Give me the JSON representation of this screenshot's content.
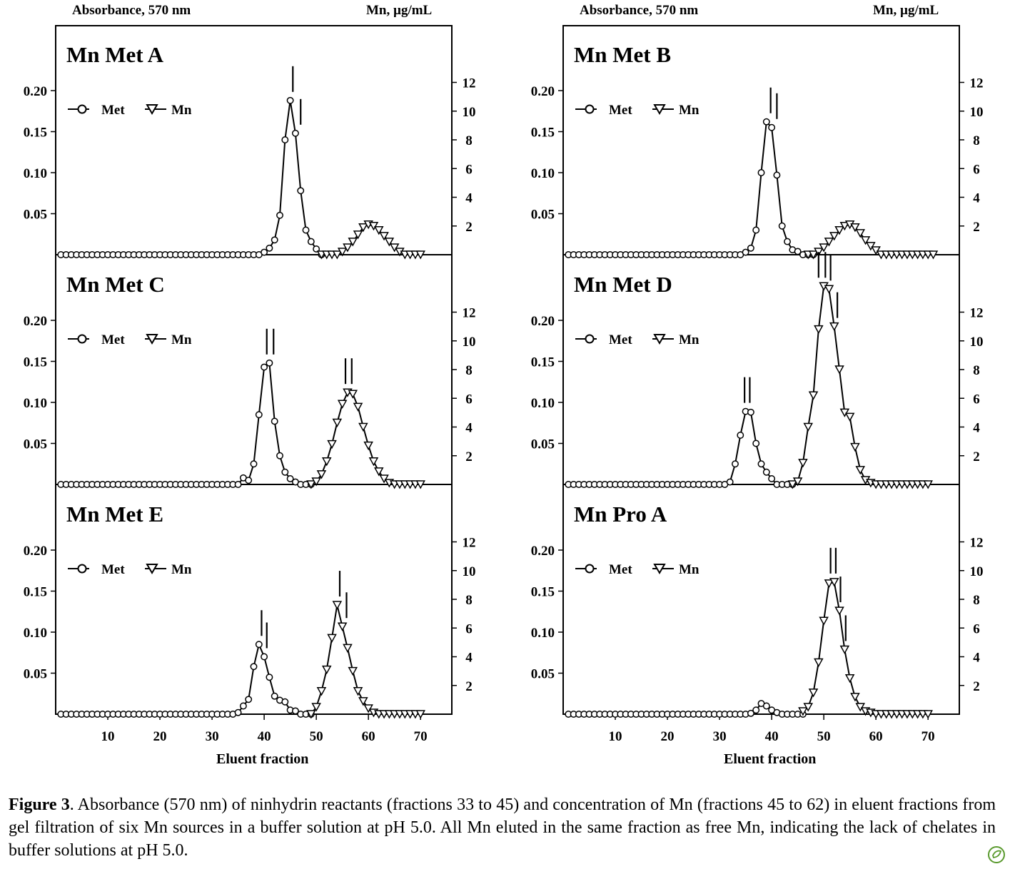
{
  "headers": {
    "left_y_label": "Absorbance, 570 nm",
    "right_y_label": "Mn, µg/mL",
    "x_label": "Eluent fraction"
  },
  "caption": {
    "figure_label": "Figure 3",
    "text": ". Absorbance (570 nm) of ninhydrin reactants (fractions 33 to 45) and concentration of Mn (fractions 45 to 62) in eluent fractions from gel filtration of six Mn sources in a buffer solution at pH 5.0. All Mn eluted in the same fraction as free Mn, indicating the lack of chelates in buffer solutions at pH 5.0."
  },
  "legend": {
    "met": "Met",
    "mn": "Mn"
  },
  "axes": {
    "x_ticks": [
      10,
      20,
      30,
      40,
      50,
      60,
      70
    ],
    "x_range": [
      0,
      76
    ],
    "left_ticks": [
      "0.05",
      "0.10",
      "0.15",
      "0.20"
    ],
    "left_range": [
      0,
      0.28
    ],
    "right_ticks": [
      "2",
      "4",
      "6",
      "8",
      "10",
      "12"
    ],
    "right_range": [
      0,
      16
    ]
  },
  "chart_data": [
    {
      "type": "line",
      "title": "Mn Met A",
      "series": [
        {
          "name": "Met",
          "axis": "left",
          "x": [
            1,
            2,
            3,
            4,
            5,
            6,
            7,
            8,
            9,
            10,
            11,
            12,
            13,
            14,
            15,
            16,
            17,
            18,
            19,
            20,
            21,
            22,
            23,
            24,
            25,
            26,
            27,
            28,
            29,
            30,
            31,
            32,
            33,
            34,
            35,
            36,
            37,
            38,
            39,
            40,
            41,
            42,
            43,
            44,
            45,
            46,
            47,
            48,
            49,
            50,
            51
          ],
          "values": [
            0,
            0,
            0,
            0,
            0,
            0,
            0,
            0,
            0,
            0,
            0,
            0,
            0,
            0,
            0,
            0,
            0,
            0,
            0,
            0,
            0,
            0,
            0,
            0,
            0,
            0,
            0,
            0,
            0,
            0,
            0,
            0,
            0,
            0,
            0,
            0,
            0,
            0,
            0,
            0.003,
            0.008,
            0.018,
            0.048,
            0.14,
            0.188,
            0.148,
            0.078,
            0.03,
            0.016,
            0.007,
            0
          ]
        },
        {
          "name": "Mn",
          "axis": "right",
          "x": [
            51,
            52,
            53,
            54,
            55,
            56,
            57,
            58,
            59,
            60,
            61,
            62,
            63,
            64,
            65,
            66,
            67,
            68,
            69,
            70
          ],
          "values": [
            0,
            0,
            0,
            0,
            0.2,
            0.5,
            0.9,
            1.4,
            1.9,
            2.1,
            2.0,
            1.7,
            1.3,
            0.9,
            0.5,
            0.2,
            0,
            0,
            0,
            0
          ]
        }
      ],
      "markers": [
        45.5,
        47
      ]
    },
    {
      "type": "line",
      "title": "Mn Met B",
      "series": [
        {
          "name": "Met",
          "axis": "left",
          "x": [
            1,
            2,
            3,
            4,
            5,
            6,
            7,
            8,
            9,
            10,
            11,
            12,
            13,
            14,
            15,
            16,
            17,
            18,
            19,
            20,
            21,
            22,
            23,
            24,
            25,
            26,
            27,
            28,
            29,
            30,
            31,
            32,
            33,
            34,
            35,
            36,
            37,
            38,
            39,
            40,
            41,
            42,
            43,
            44,
            45,
            46,
            47,
            48
          ],
          "values": [
            0,
            0,
            0,
            0,
            0,
            0,
            0,
            0,
            0,
            0,
            0,
            0,
            0,
            0,
            0,
            0,
            0,
            0,
            0,
            0,
            0,
            0,
            0,
            0,
            0,
            0,
            0,
            0,
            0,
            0,
            0,
            0,
            0,
            0,
            0.003,
            0.008,
            0.03,
            0.1,
            0.162,
            0.155,
            0.097,
            0.035,
            0.016,
            0.006,
            0.004,
            0,
            0,
            0
          ]
        },
        {
          "name": "Mn",
          "axis": "right",
          "x": [
            47,
            48,
            49,
            50,
            51,
            52,
            53,
            54,
            55,
            56,
            57,
            58,
            59,
            60,
            61,
            62,
            63,
            64,
            65,
            66,
            67,
            68,
            69,
            70,
            71
          ],
          "values": [
            0,
            0,
            0.2,
            0.5,
            0.9,
            1.3,
            1.7,
            2.0,
            2.1,
            1.9,
            1.5,
            1.0,
            0.6,
            0.3,
            0,
            0,
            0,
            0,
            0,
            0,
            0,
            0,
            0,
            0,
            0
          ]
        }
      ],
      "markers": [
        39.8,
        41
      ]
    },
    {
      "type": "line",
      "title": "Mn Met C",
      "series": [
        {
          "name": "Met",
          "axis": "left",
          "x": [
            1,
            2,
            3,
            4,
            5,
            6,
            7,
            8,
            9,
            10,
            11,
            12,
            13,
            14,
            15,
            16,
            17,
            18,
            19,
            20,
            21,
            22,
            23,
            24,
            25,
            26,
            27,
            28,
            29,
            30,
            31,
            32,
            33,
            34,
            35,
            36,
            37,
            38,
            39,
            40,
            41,
            42,
            43,
            44,
            45,
            46,
            47,
            48,
            49
          ],
          "values": [
            0,
            0,
            0,
            0,
            0,
            0,
            0,
            0,
            0,
            0,
            0,
            0,
            0,
            0,
            0,
            0,
            0,
            0,
            0,
            0,
            0,
            0,
            0,
            0,
            0,
            0,
            0,
            0,
            0,
            0,
            0,
            0,
            0,
            0,
            0,
            0.008,
            0.005,
            0.025,
            0.085,
            0.143,
            0.148,
            0.077,
            0.035,
            0.015,
            0.007,
            0.003,
            0,
            0,
            0
          ]
        },
        {
          "name": "Mn",
          "axis": "right",
          "x": [
            49,
            50,
            51,
            52,
            53,
            54,
            55,
            56,
            57,
            58,
            59,
            60,
            61,
            62,
            63,
            64,
            65,
            66,
            67,
            68,
            69,
            70
          ],
          "values": [
            0,
            0.2,
            0.7,
            1.6,
            2.8,
            4.3,
            5.6,
            6.4,
            6.3,
            5.4,
            4.0,
            2.7,
            1.6,
            0.9,
            0.4,
            0.1,
            0,
            0,
            0,
            0,
            0,
            0
          ]
        }
      ],
      "markers": [
        40.5,
        41.8,
        55.6,
        56.8
      ]
    },
    {
      "type": "line",
      "title": "Mn Met D",
      "series": [
        {
          "name": "Met",
          "axis": "left",
          "x": [
            1,
            2,
            3,
            4,
            5,
            6,
            7,
            8,
            9,
            10,
            11,
            12,
            13,
            14,
            15,
            16,
            17,
            18,
            19,
            20,
            21,
            22,
            23,
            24,
            25,
            26,
            27,
            28,
            29,
            30,
            31,
            32,
            33,
            34,
            35,
            36,
            37,
            38,
            39,
            40,
            41,
            42,
            43,
            44
          ],
          "values": [
            0,
            0,
            0,
            0,
            0,
            0,
            0,
            0,
            0,
            0,
            0,
            0,
            0,
            0,
            0,
            0,
            0,
            0,
            0,
            0,
            0,
            0,
            0,
            0,
            0,
            0,
            0,
            0,
            0,
            0,
            0,
            0.003,
            0.025,
            0.06,
            0.089,
            0.088,
            0.05,
            0.025,
            0.015,
            0.007,
            0,
            0,
            0,
            0
          ]
        },
        {
          "name": "Mn",
          "axis": "right",
          "x": [
            44,
            45,
            46,
            47,
            48,
            49,
            50,
            51,
            52,
            53,
            54,
            55,
            56,
            57,
            58,
            59,
            60,
            61,
            62,
            63,
            64,
            65,
            66,
            67,
            68,
            69,
            70
          ],
          "values": [
            0,
            0.2,
            1.5,
            4.0,
            6.2,
            10.8,
            13.8,
            13.6,
            11.0,
            8.0,
            5.0,
            4.7,
            2.6,
            1.0,
            0.3,
            0.1,
            0,
            0,
            0,
            0,
            0,
            0,
            0,
            0,
            0,
            0,
            0
          ]
        }
      ],
      "markers": [
        34.8,
        35.8,
        49,
        50.3,
        51.3,
        52.6
      ]
    },
    {
      "type": "line",
      "title": "Mn Met E",
      "series": [
        {
          "name": "Met",
          "axis": "left",
          "x": [
            1,
            2,
            3,
            4,
            5,
            6,
            7,
            8,
            9,
            10,
            11,
            12,
            13,
            14,
            15,
            16,
            17,
            18,
            19,
            20,
            21,
            22,
            23,
            24,
            25,
            26,
            27,
            28,
            29,
            30,
            31,
            32,
            33,
            34,
            35,
            36,
            37,
            38,
            39,
            40,
            41,
            42,
            43,
            44,
            45,
            46,
            47,
            48,
            49
          ],
          "values": [
            0,
            0,
            0,
            0,
            0,
            0,
            0,
            0,
            0,
            0,
            0,
            0,
            0,
            0,
            0,
            0,
            0,
            0,
            0,
            0,
            0,
            0,
            0,
            0,
            0,
            0,
            0,
            0,
            0,
            0,
            0,
            0,
            0,
            0,
            0.002,
            0.01,
            0.018,
            0.058,
            0.085,
            0.07,
            0.045,
            0.022,
            0.017,
            0.015,
            0.005,
            0.004,
            0,
            0,
            0
          ]
        },
        {
          "name": "Mn",
          "axis": "right",
          "x": [
            49,
            50,
            51,
            52,
            53,
            54,
            55,
            56,
            57,
            58,
            59,
            60,
            61,
            62,
            63,
            64,
            65,
            66,
            67,
            68,
            69,
            70
          ],
          "values": [
            0,
            0.5,
            1.6,
            3.1,
            5.3,
            7.6,
            6.1,
            4.6,
            3.0,
            1.6,
            0.9,
            0.4,
            0.1,
            0,
            0,
            0,
            0,
            0,
            0,
            0,
            0,
            0
          ]
        }
      ],
      "markers": [
        39.5,
        40.5,
        54.5,
        55.8
      ]
    },
    {
      "type": "line",
      "title": "Mn Pro A",
      "series": [
        {
          "name": "Met",
          "axis": "left",
          "x": [
            1,
            2,
            3,
            4,
            5,
            6,
            7,
            8,
            9,
            10,
            11,
            12,
            13,
            14,
            15,
            16,
            17,
            18,
            19,
            20,
            21,
            22,
            23,
            24,
            25,
            26,
            27,
            28,
            29,
            30,
            31,
            32,
            33,
            34,
            35,
            36,
            37,
            38,
            39,
            40,
            41,
            42,
            43,
            44,
            45,
            46
          ],
          "values": [
            0,
            0,
            0,
            0,
            0,
            0,
            0,
            0,
            0,
            0,
            0,
            0,
            0,
            0,
            0,
            0,
            0,
            0,
            0,
            0,
            0,
            0,
            0,
            0,
            0,
            0,
            0,
            0,
            0,
            0,
            0,
            0,
            0,
            0,
            0,
            0.001,
            0.005,
            0.013,
            0.01,
            0.005,
            0.002,
            0,
            0,
            0,
            0,
            0
          ]
        },
        {
          "name": "Mn",
          "axis": "right",
          "x": [
            46,
            47,
            48,
            49,
            50,
            51,
            52,
            53,
            54,
            55,
            56,
            57,
            58,
            59,
            60,
            61,
            62,
            63,
            64,
            65,
            66,
            67,
            68,
            69,
            70
          ],
          "values": [
            0.2,
            0.5,
            1.5,
            3.6,
            6.5,
            9.1,
            9.2,
            7.2,
            4.5,
            2.5,
            1.2,
            0.5,
            0.2,
            0.1,
            0,
            0,
            0,
            0,
            0,
            0,
            0,
            0,
            0,
            0,
            0
          ]
        }
      ],
      "markers": [
        51.3,
        52.3,
        53.2,
        54.2
      ]
    }
  ]
}
